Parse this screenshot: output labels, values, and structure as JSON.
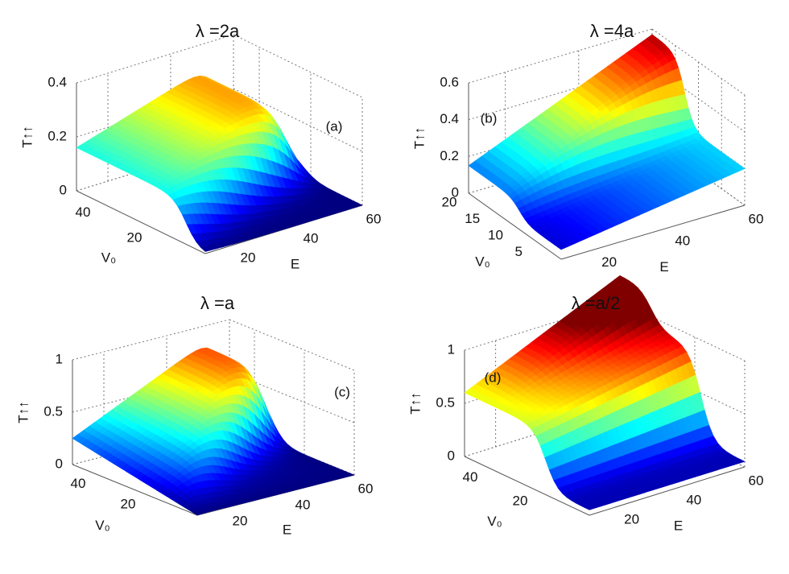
{
  "chart_data": [
    {
      "type": "surface",
      "title": "λ =2a",
      "panel_label": "(a)",
      "xlabel": "E",
      "ylabel": "V₀",
      "zlabel": "T↑↑",
      "xlim": [
        10,
        60
      ],
      "xticks": [
        20,
        40,
        60
      ],
      "ylim": [
        0,
        50
      ],
      "yticks": [
        20,
        40
      ],
      "zlim": [
        0,
        0.4
      ],
      "zticks": [
        0,
        0.2,
        0.4
      ],
      "grid": true
    },
    {
      "type": "surface",
      "title": "λ =4a",
      "panel_label": "(b)",
      "xlabel": "E",
      "ylabel": "V₀",
      "zlabel": "T↑↑",
      "xlim": [
        10,
        60
      ],
      "xticks": [
        20,
        40,
        60
      ],
      "ylim": [
        0,
        20
      ],
      "yticks": [
        5,
        10,
        15,
        20
      ],
      "zlim": [
        0,
        0.6
      ],
      "zticks": [
        0,
        0.2,
        0.4,
        0.6
      ],
      "grid": true
    },
    {
      "type": "surface",
      "title": "λ =a",
      "panel_label": "(c)",
      "xlabel": "E",
      "ylabel": "V₀",
      "zlabel": "T↑↑",
      "xlim": [
        10,
        60
      ],
      "xticks": [
        20,
        40,
        60
      ],
      "ylim": [
        0,
        50
      ],
      "yticks": [
        20,
        40
      ],
      "zlim": [
        0,
        1
      ],
      "zticks": [
        0,
        0.5,
        1
      ],
      "grid": true
    },
    {
      "type": "surface",
      "title": "λ =a/2",
      "panel_label": "(d)",
      "xlabel": "E",
      "ylabel": "V₀",
      "zlabel": "T↑↑",
      "xlim": [
        10,
        60
      ],
      "xticks": [
        20,
        40,
        60
      ],
      "ylim": [
        0,
        50
      ],
      "yticks": [
        20,
        40
      ],
      "zlim": [
        0,
        1
      ],
      "zticks": [
        0,
        0.5,
        1
      ],
      "grid": true
    }
  ]
}
